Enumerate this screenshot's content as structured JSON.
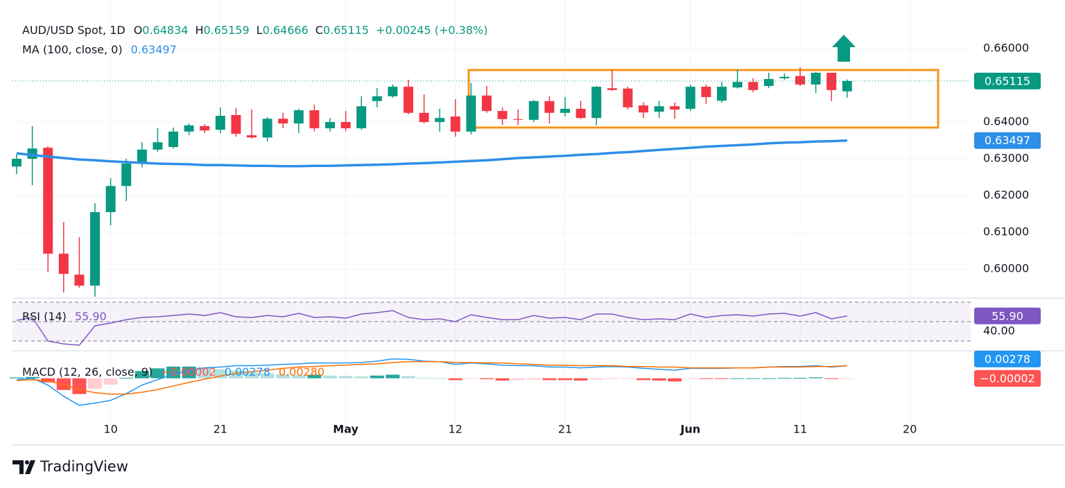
{
  "chart_data": [
    {
      "type": "candlestick",
      "title": "AUD/USD Spot, 1D",
      "ohlc_labels": [
        "O",
        "H",
        "L",
        "C"
      ],
      "change": "+0.00245 (+0.38%)",
      "categories": [
        null,
        null,
        null,
        null,
        null,
        null,
        "10",
        null,
        null,
        null,
        null,
        null,
        null,
        "21",
        null,
        null,
        null,
        null,
        null,
        null,
        null,
        "May",
        null,
        null,
        null,
        null,
        null,
        null,
        "12",
        null,
        null,
        null,
        null,
        null,
        null,
        "21",
        null,
        null,
        null,
        null,
        null,
        null,
        null,
        "Jun",
        null,
        null,
        null,
        null,
        null,
        null,
        "11",
        null,
        null,
        null,
        null,
        null,
        null,
        "20",
        null,
        null,
        null
      ],
      "open": [
        0.6279,
        0.63,
        0.633,
        0.6042,
        0.5985,
        0.5955,
        0.6155,
        0.6226,
        0.6287,
        0.6325,
        0.6332,
        0.6374,
        0.6389,
        0.6379,
        0.6419,
        0.6364,
        0.6358,
        0.6409,
        0.6396,
        0.6432,
        0.6383,
        0.64,
        0.6383,
        0.6457,
        0.647,
        0.6496,
        0.6425,
        0.64,
        0.6415,
        0.6374,
        0.6472,
        0.643,
        0.6408,
        0.6406,
        0.6457,
        0.6425,
        0.6436,
        0.6411,
        0.6492,
        0.6491,
        0.6445,
        0.6428,
        0.6443,
        0.6436,
        0.6496,
        0.6458,
        0.6494,
        0.6509,
        0.6498,
        0.6519,
        0.6525,
        0.6502,
        0.6534,
        0.64834,
        null,
        null,
        null,
        null,
        null,
        null,
        null
      ],
      "high": [
        0.6313,
        0.6389,
        0.6334,
        0.6128,
        0.6087,
        0.6179,
        0.6247,
        0.63,
        0.6345,
        0.6383,
        0.6385,
        0.6396,
        0.6394,
        0.644,
        0.6438,
        0.6434,
        0.6413,
        0.6425,
        0.6436,
        0.6447,
        0.6411,
        0.643,
        0.647,
        0.6492,
        0.6502,
        0.6515,
        0.6475,
        0.6436,
        0.6462,
        0.6506,
        0.6498,
        0.644,
        0.6434,
        0.646,
        0.647,
        0.6468,
        0.6458,
        0.6498,
        0.6543,
        0.6496,
        0.6453,
        0.6458,
        0.6453,
        0.6502,
        0.6502,
        0.6509,
        0.6543,
        0.6519,
        0.6534,
        0.6532,
        0.6549,
        0.6536,
        0.6534,
        0.65159,
        null,
        null,
        null,
        null,
        null,
        null,
        null
      ],
      "low": [
        0.6258,
        0.6228,
        0.5992,
        0.5936,
        0.5949,
        0.5925,
        0.6119,
        0.6185,
        0.6277,
        0.6319,
        0.6328,
        0.6364,
        0.637,
        0.637,
        0.636,
        0.6355,
        0.6347,
        0.6383,
        0.637,
        0.6375,
        0.6374,
        0.6375,
        0.6379,
        0.644,
        0.6466,
        0.6421,
        0.6396,
        0.6374,
        0.636,
        0.6366,
        0.6425,
        0.6392,
        0.6392,
        0.64,
        0.6396,
        0.6415,
        0.6408,
        0.6391,
        0.6485,
        0.6434,
        0.6411,
        0.6411,
        0.6409,
        0.643,
        0.6449,
        0.6453,
        0.6491,
        0.6481,
        0.6492,
        0.6515,
        0.6498,
        0.6479,
        0.6457,
        0.64666,
        null,
        null,
        null,
        null,
        null,
        null,
        null
      ],
      "close": [
        0.63,
        0.6328,
        0.6042,
        0.5987,
        0.5955,
        0.6155,
        0.6226,
        0.6287,
        0.6325,
        0.6345,
        0.6374,
        0.6391,
        0.6377,
        0.6417,
        0.6368,
        0.6358,
        0.6409,
        0.6396,
        0.6432,
        0.6383,
        0.64,
        0.6383,
        0.6443,
        0.647,
        0.6496,
        0.6425,
        0.64,
        0.6411,
        0.6374,
        0.6472,
        0.643,
        0.6408,
        0.6406,
        0.6457,
        0.6425,
        0.6436,
        0.6411,
        0.6496,
        0.6487,
        0.644,
        0.6426,
        0.6443,
        0.6434,
        0.6496,
        0.6468,
        0.6496,
        0.6509,
        0.6487,
        0.6517,
        0.6523,
        0.6502,
        0.6534,
        0.6487,
        0.65115,
        null,
        null,
        null,
        null,
        null,
        null,
        null
      ],
      "up_color": "#089981",
      "down_color": "#f23645",
      "series": [
        {
          "name": "MA (100, close, 0)",
          "color": "#2e8ee8",
          "values": [
            0.6315,
            0.631,
            0.6306,
            0.6302,
            0.6298,
            0.6296,
            0.6293,
            0.6291,
            0.6289,
            0.6287,
            0.6286,
            0.6285,
            0.6283,
            0.6283,
            0.6282,
            0.6281,
            0.6281,
            0.628,
            0.628,
            0.6281,
            0.6281,
            0.6282,
            0.6283,
            0.6284,
            0.6285,
            0.6287,
            0.6288,
            0.629,
            0.6292,
            0.6294,
            0.6296,
            0.6299,
            0.6302,
            0.6304,
            0.6306,
            0.6308,
            0.6311,
            0.6313,
            0.6316,
            0.6318,
            0.6321,
            0.6324,
            0.6327,
            0.633,
            0.6333,
            0.6335,
            0.6337,
            0.6339,
            0.6342,
            0.6344,
            0.6345,
            0.6347,
            0.6348,
            0.63497,
            null,
            null,
            null,
            null,
            null,
            null,
            null
          ]
        }
      ],
      "ylim": [
        0.5925,
        0.6713
      ],
      "yticks": [
        {
          "value": 0.6,
          "label": "0.60000"
        },
        {
          "value": 0.61,
          "label": "0.61000"
        },
        {
          "value": 0.62,
          "label": "0.62000"
        },
        {
          "value": 0.63,
          "label": "0.63000"
        },
        {
          "value": 0.64,
          "label": "0.64000"
        },
        {
          "value": 0.66,
          "label": "0.66000"
        }
      ],
      "grid": true,
      "brand": "TradingView"
    },
    {
      "type": "line",
      "title": "RSI (14)",
      "color": "#7e57c2",
      "values": [
        51.4,
        54.3,
        30,
        27.1,
        25.7,
        45.7,
        48.6,
        52.1,
        54.3,
        55,
        56.4,
        57.9,
        56.4,
        59.3,
        55,
        54.3,
        56.4,
        55,
        58.6,
        54.3,
        55,
        53.6,
        57.9,
        59.3,
        61.4,
        54.3,
        52.1,
        52.9,
        50,
        57.1,
        54.3,
        52.1,
        52.1,
        56.4,
        53.6,
        54.3,
        52.1,
        57.9,
        57.9,
        54.3,
        52.1,
        52.9,
        52.1,
        57.9,
        54.3,
        56.4,
        57.1,
        55.7,
        57.9,
        58.6,
        55.7,
        59.3,
        52.9,
        55.9
      ],
      "value_labels": [
        null,
        null,
        null,
        null,
        null,
        null,
        null,
        null,
        null,
        null,
        null,
        null,
        null,
        null,
        null,
        null,
        null,
        null,
        null,
        null,
        null,
        null,
        null,
        null,
        null,
        null,
        null,
        null,
        null,
        null,
        null,
        null,
        null,
        null,
        null,
        null,
        null,
        null,
        null,
        null,
        null,
        null,
        null,
        null,
        null,
        null,
        null,
        null,
        null,
        null,
        null,
        null,
        null,
        "55.90"
      ],
      "levels": [
        30,
        50,
        70
      ],
      "ylim": [
        20,
        74.3
      ],
      "yticks": [
        {
          "value": 40,
          "label": "40.00"
        }
      ]
    },
    {
      "type": "macd",
      "title": "MACD (12, 26, close, 9)",
      "histogram": {
        "colors": [
          "#26a69a",
          "#b2dfdb",
          "#ffcdd2",
          "#ff5252"
        ],
        "values": [
          0.0002,
          0.0003,
          -0.0009,
          -0.0026,
          -0.0035,
          -0.0023,
          -0.0014,
          0.0001,
          0.0016,
          0.0022,
          0.0026,
          0.0026,
          0.0025,
          0.002,
          0.0017,
          0.0013,
          0.0011,
          0.0009,
          0.0007,
          0.0008,
          0.0006,
          0.0005,
          0.0004,
          0.0006,
          0.0008,
          0.0005,
          0.0001,
          0,
          -0.0004,
          -0.0001,
          -0.0002,
          -0.0005,
          -0.0004,
          -0.0003,
          -0.0004,
          -0.0004,
          -0.0005,
          -0.0003,
          -0.0002,
          -0.0001,
          -0.0004,
          -0.0005,
          -0.0007,
          -0.0001,
          -0.0001,
          -0.0001,
          0,
          0,
          0,
          0.0001,
          0.0001,
          0.0002,
          -0.0001,
          -2e-05
        ],
        "value_labels": [
          null,
          null,
          null,
          null,
          null,
          null,
          null,
          null,
          null,
          null,
          null,
          null,
          null,
          null,
          null,
          null,
          null,
          null,
          null,
          null,
          null,
          null,
          null,
          null,
          null,
          null,
          null,
          null,
          null,
          null,
          null,
          null,
          null,
          null,
          null,
          null,
          null,
          null,
          null,
          null,
          null,
          null,
          null,
          null,
          null,
          null,
          null,
          null,
          null,
          null,
          null,
          null,
          null,
          "−0.00002"
        ]
      },
      "series": [
        {
          "color": "#2196f3",
          "values": [
            -0.0003,
            0,
            -0.0015,
            -0.004,
            -0.006,
            -0.0055,
            -0.0049,
            -0.0034,
            -0.0015,
            -0.0003,
            0.0009,
            0.0017,
            0.0023,
            0.0025,
            0.0028,
            0.0028,
            0.0029,
            0.0031,
            0.0032,
            0.0034,
            0.0034,
            0.0034,
            0.0035,
            0.0038,
            0.0043,
            0.0042,
            0.0038,
            0.0037,
            0.0031,
            0.0034,
            0.0032,
            0.0029,
            0.0028,
            0.0028,
            0.0025,
            0.0025,
            0.0023,
            0.0025,
            0.0026,
            0.0025,
            0.0022,
            0.002,
            0.0018,
            0.0022,
            0.0022,
            0.0022,
            0.0023,
            0.0023,
            0.0025,
            0.0026,
            0.0026,
            0.0028,
            0.0025,
            0.00278
          ]
        },
        {
          "color": "#ff6d00",
          "values": [
            -0.0005,
            -0.0003,
            -0.0006,
            -0.0014,
            -0.0025,
            -0.0032,
            -0.0035,
            -0.0035,
            -0.0031,
            -0.0025,
            -0.0017,
            -0.0009,
            -0.0002,
            0.0005,
            0.0011,
            0.0015,
            0.0018,
            0.0022,
            0.0025,
            0.0026,
            0.0028,
            0.0029,
            0.0031,
            0.0032,
            0.0035,
            0.0037,
            0.0037,
            0.0037,
            0.0035,
            0.0035,
            0.0034,
            0.0034,
            0.0032,
            0.0031,
            0.0029,
            0.0029,
            0.0028,
            0.0028,
            0.0028,
            0.0026,
            0.0026,
            0.0025,
            0.0025,
            0.0023,
            0.0023,
            0.0023,
            0.0023,
            0.0023,
            0.0025,
            0.0025,
            0.0025,
            0.0026,
            0.0026,
            0.0028
          ],
          "value_labels": [
            null,
            null,
            null,
            null,
            null,
            null,
            null,
            null,
            null,
            null,
            null,
            null,
            null,
            null,
            null,
            null,
            null,
            null,
            null,
            null,
            null,
            null,
            null,
            null,
            null,
            null,
            null,
            null,
            null,
            null,
            null,
            null,
            null,
            null,
            null,
            null,
            null,
            null,
            null,
            null,
            null,
            null,
            null,
            null,
            null,
            null,
            null,
            null,
            null,
            null,
            null,
            null,
            null,
            "0.00280"
          ]
        }
      ],
      "ylim": [
        -0.0148,
        0.0058
      ]
    }
  ]
}
